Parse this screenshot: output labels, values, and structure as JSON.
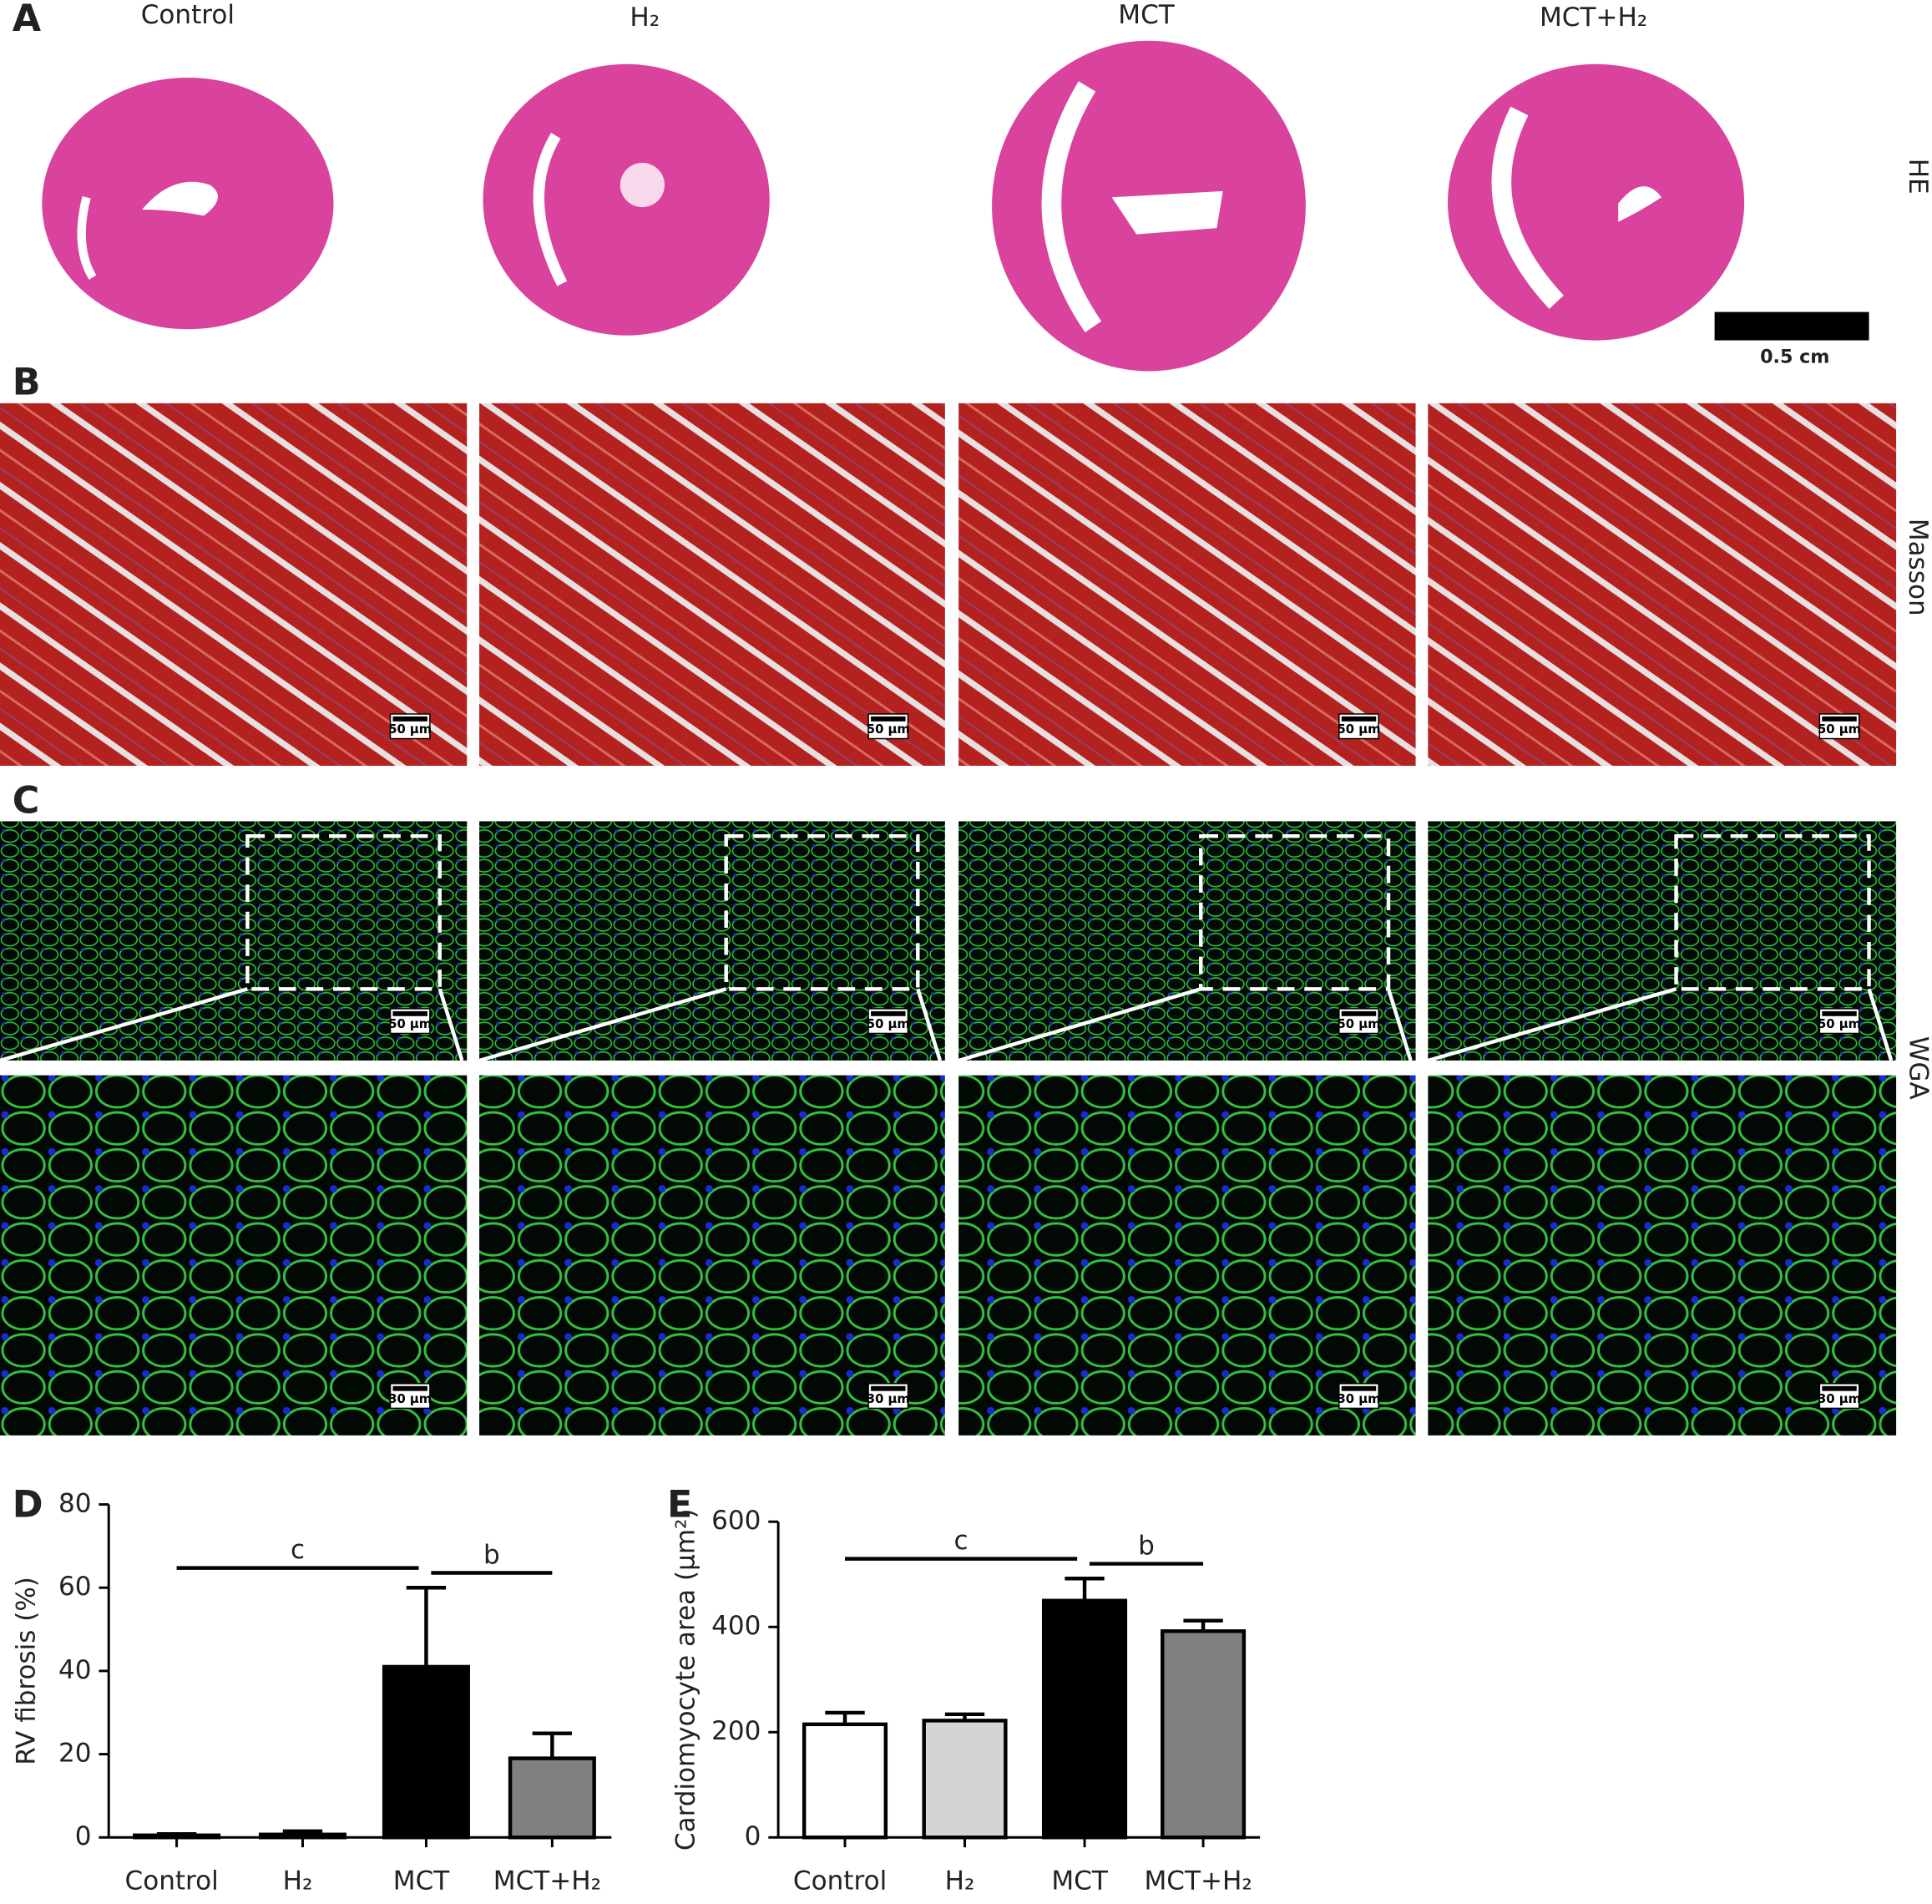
{
  "figure": {
    "panel_labels": [
      "A",
      "B",
      "C",
      "D",
      "E"
    ],
    "column_headers": [
      "Control",
      "H₂",
      "MCT",
      "MCT+H₂"
    ],
    "row_labels": [
      "HE",
      "Masson",
      "WGA"
    ],
    "he_scale_bar": "0.5 cm",
    "masson_scale_bars": [
      "50 µm",
      "50 µm",
      "50 µm",
      "50 µm"
    ],
    "wga_low_scale_bars": [
      "50 µm",
      "50 µm",
      "50 µm",
      "50 µm"
    ],
    "wga_high_scale_bars": [
      "30 µm",
      "30 µm",
      "30 µm",
      "30 µm"
    ]
  },
  "chart_data": [
    {
      "type": "bar",
      "y_label": "RV fibrosis (%)",
      "categories": [
        "Control",
        "H₂",
        "MCT",
        "MCT+H₂"
      ],
      "values": [
        0.5,
        0.7,
        41,
        19
      ],
      "errors": [
        0.3,
        0.8,
        19,
        6
      ],
      "colors": [
        "#ffffff",
        "#d4d4d4",
        "#000000",
        "#808080"
      ],
      "ylim": [
        0,
        80
      ],
      "yticks": [
        0,
        20,
        40,
        60,
        80
      ],
      "annotations": [
        {
          "text": "c",
          "from": 0,
          "to": 2
        },
        {
          "text": "b",
          "from": 2,
          "to": 3
        }
      ]
    },
    {
      "type": "bar",
      "y_label": "Cardiomyocyte area (µm²)",
      "categories": [
        "Control",
        "H₂",
        "MCT",
        "MCT+H₂"
      ],
      "values": [
        215,
        222,
        450,
        392
      ],
      "errors": [
        22,
        12,
        42,
        20
      ],
      "colors": [
        "#ffffff",
        "#d4d4d4",
        "#000000",
        "#808080"
      ],
      "ylim": [
        0,
        600
      ],
      "yticks": [
        0,
        200,
        400,
        600
      ],
      "annotations": [
        {
          "text": "c",
          "from": 0,
          "to": 2
        },
        {
          "text": "b",
          "from": 2,
          "to": 3
        }
      ]
    }
  ]
}
